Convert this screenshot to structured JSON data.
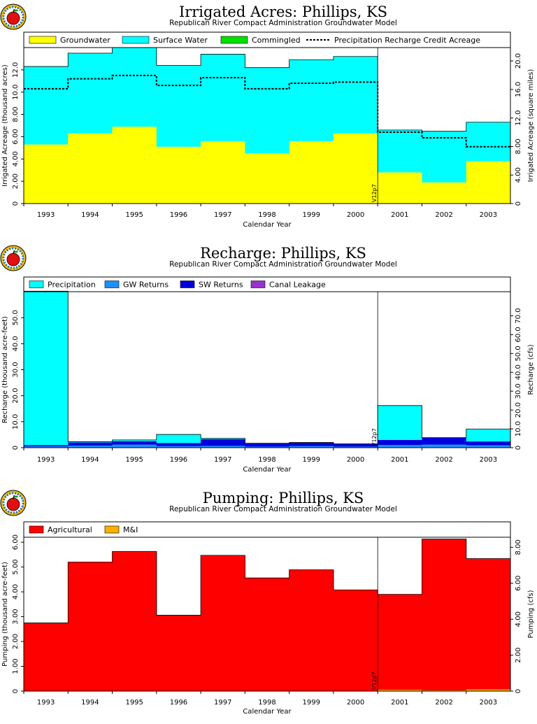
{
  "colors": {
    "groundwater": "#ffff00",
    "surface_water": "#00ffff",
    "commingled": "#00e000",
    "precipitation": "#00ffff",
    "gw_returns": "#1e90ff",
    "sw_returns": "#0000dd",
    "canal_leakage": "#9932cc",
    "agricultural": "#ff0000",
    "mi": "#ffb000"
  },
  "icons": [
    "apple-logo-icon"
  ],
  "chart_data": [
    {
      "type": "area",
      "title": "Irrigated Acres: Phillips, KS",
      "subtitle": "Republican River Compact Administration Groundwater Model",
      "xlabel": "Calendar Year",
      "ylabel": "Irrigated Acreage (thousand acres)",
      "y2label": "Irrigated Acreage (square miles)",
      "categories": [
        "1993",
        "1994",
        "1995",
        "1996",
        "1997",
        "1998",
        "1999",
        "2000",
        "2001",
        "2002",
        "2003"
      ],
      "ylim": [
        0,
        14
      ],
      "y2lim": [
        0,
        21.875
      ],
      "yticks": [
        "0",
        "2.00",
        "4.00",
        "6.00",
        "8.00",
        "10.0",
        "12.0"
      ],
      "y2ticks": [
        "0",
        "4.00",
        "8.00",
        "12.0",
        "16.0",
        "20.0"
      ],
      "divider_label": "V12p7",
      "series": [
        {
          "name": "Groundwater",
          "values": [
            5.3,
            6.3,
            6.9,
            5.1,
            5.6,
            4.5,
            5.6,
            6.3,
            2.8,
            1.9,
            3.8
          ]
        },
        {
          "name": "Surface Water",
          "values": [
            7.0,
            7.2,
            7.1,
            7.3,
            7.8,
            7.7,
            7.3,
            6.9,
            3.8,
            4.6,
            3.5
          ]
        },
        {
          "name": "Commingled",
          "values": [
            0,
            0,
            0,
            0,
            0,
            0,
            0,
            0,
            0,
            0,
            0
          ]
        }
      ],
      "line_series": {
        "name": "Precipitation Recharge Credit Acreage",
        "values": [
          10.3,
          11.2,
          11.5,
          10.6,
          11.3,
          10.3,
          10.8,
          10.9,
          6.4,
          5.9,
          5.1
        ]
      },
      "legend": [
        "Groundwater",
        "Surface Water",
        "Commingled",
        "Precipitation Recharge Credit Acreage"
      ]
    },
    {
      "type": "area",
      "title": "Recharge: Phillips, KS",
      "subtitle": "Republican River Compact Administration Groundwater Model",
      "xlabel": "Calendar Year",
      "ylabel": "Recharge (thousand acre-feet)",
      "y2label": "Recharge (cfs)",
      "categories": [
        "1993",
        "1994",
        "1995",
        "1996",
        "1997",
        "1998",
        "1999",
        "2000",
        "2001",
        "2002",
        "2003"
      ],
      "ylim": [
        0,
        60
      ],
      "y2lim": [
        0,
        82.8
      ],
      "yticks": [
        "0",
        "10.0",
        "20.0",
        "30.0",
        "40.0",
        "50.0"
      ],
      "y2ticks": [
        "0",
        "10.0",
        "20.0",
        "30.0",
        "40.0",
        "50.0",
        "60.0",
        "70.0"
      ],
      "divider_label": "V12p7",
      "series": [
        {
          "name": "GW Returns",
          "values": [
            0.5,
            0.8,
            1.2,
            0.6,
            0.7,
            0.4,
            0.6,
            0.4,
            1.0,
            1.2,
            0.9
          ]
        },
        {
          "name": "SW Returns",
          "values": [
            0.5,
            1.2,
            1.3,
            1.2,
            2.6,
            1.2,
            1.3,
            1.0,
            2.0,
            2.6,
            1.5
          ]
        },
        {
          "name": "Precipitation",
          "values": [
            59.2,
            0.3,
            0.5,
            3.3,
            0.3,
            0.1,
            0.1,
            0.1,
            13.2,
            0.1,
            4.8
          ]
        },
        {
          "name": "Canal Leakage",
          "values": [
            0,
            0,
            0,
            0,
            0,
            0,
            0,
            0,
            0,
            0,
            0
          ]
        }
      ],
      "legend": [
        "Precipitation",
        "GW Returns",
        "SW Returns",
        "Canal Leakage"
      ]
    },
    {
      "type": "area",
      "title": "Pumping: Phillips, KS",
      "subtitle": "Republican River Compact Administration Groundwater Model",
      "xlabel": "Calendar Year",
      "ylabel": "Pumping (thousand acre-feet)",
      "y2label": "Pumping (cfs)",
      "categories": [
        "1993",
        "1994",
        "1995",
        "1996",
        "1997",
        "1998",
        "1999",
        "2000",
        "2001",
        "2002",
        "2003"
      ],
      "ylim": [
        0,
        6.2
      ],
      "y2lim": [
        0,
        8.56
      ],
      "yticks": [
        "0",
        "1.00",
        "2.00",
        "3.00",
        "4.00",
        "5.00",
        "6.00"
      ],
      "y2ticks": [
        "0",
        "2.00",
        "4.00",
        "6.00",
        "8.00"
      ],
      "divider_label": "V12p7",
      "series": [
        {
          "name": "M&I",
          "values": [
            0.01,
            0.01,
            0.01,
            0.01,
            0.01,
            0.01,
            0.01,
            0.01,
            0.05,
            0.03,
            0.07
          ]
        },
        {
          "name": "Agricultural",
          "values": [
            2.74,
            5.19,
            5.62,
            3.05,
            5.46,
            4.55,
            4.88,
            4.07,
            3.85,
            6.1,
            5.27
          ]
        }
      ],
      "legend": [
        "Agricultural",
        "M&I"
      ]
    }
  ]
}
